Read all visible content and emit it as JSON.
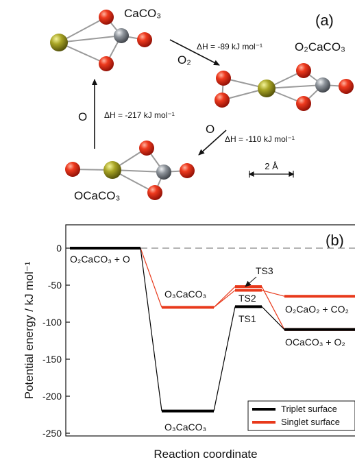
{
  "panel_a": {
    "label": "(a)",
    "species": {
      "caco3": "CaCO₃",
      "o2caco3": "O₂CaCO₃",
      "ocaco3": "OCaCO₃"
    },
    "reagents": {
      "o2": "O₂",
      "o_right": "O",
      "o_left": "O"
    },
    "enthalpies": {
      "to_o2caco3": "ΔH = -89 kJ mol⁻¹",
      "to_ocaco3": "ΔH = -110 kJ mol⁻¹",
      "to_caco3": "ΔH = -217 kJ mol⁻¹"
    },
    "scale_bar": "2 Å",
    "atom_colors": {
      "calcium": "#9a9a1e",
      "carbon": "#8a9096",
      "oxygen": "#e0200e"
    }
  },
  "panel_b": {
    "label": "(b)",
    "ylabel": "Potential energy / kJ mol⁻¹",
    "xlabel": "Reaction coordinate",
    "yticks": [
      "0",
      "-50",
      "-100",
      "-150",
      "-200",
      "-250"
    ],
    "legend": {
      "triplet": "Triplet surface",
      "singlet": "Singlet surface"
    },
    "level_labels": {
      "start": "O₂CaCO₃ + O",
      "o3caco3_singlet": "O₃CaCO₃",
      "o3caco3_triplet": "O₃CaCO₃",
      "ts3": "TS3",
      "ts2": "TS2",
      "ts1": "TS1",
      "o2cao2": "O₂CaO₂ + CO₂",
      "ocaco3": "OCaCO₃ + O₂"
    },
    "colors": {
      "triplet": "#000000",
      "singlet": "#e8391b"
    }
  },
  "chart_data": {
    "type": "line",
    "ylabel": "Potential energy / kJ mol⁻¹",
    "xlabel": "Reaction coordinate",
    "ylim": [
      -250,
      30
    ],
    "yticks": [
      0,
      -50,
      -100,
      -150,
      -200,
      -250
    ],
    "series": [
      {
        "name": "Triplet surface",
        "levels": [
          {
            "label": "O₂CaCO₃ + O",
            "energy": 0
          },
          {
            "label": "O₃CaCO₃",
            "energy": -220
          },
          {
            "label": "TS1",
            "energy": -79
          },
          {
            "label": "OCaCO₃ + O₂",
            "energy": -110
          }
        ]
      },
      {
        "name": "Singlet surface",
        "levels": [
          {
            "label": "O₂CaCO₃ + O",
            "energy": 0
          },
          {
            "label": "O₃CaCO₃",
            "energy": -80
          },
          {
            "label": "TS2",
            "energy": -57
          },
          {
            "label": "TS3",
            "energy": -52
          },
          {
            "label": "O₂CaO₂ + CO₂",
            "energy": -65
          },
          {
            "label": "OCaCO₃ + O₂",
            "energy": -110
          }
        ]
      }
    ],
    "legend_position": "bottom-right",
    "reference_line": {
      "energy": 0,
      "style": "dashed"
    }
  }
}
